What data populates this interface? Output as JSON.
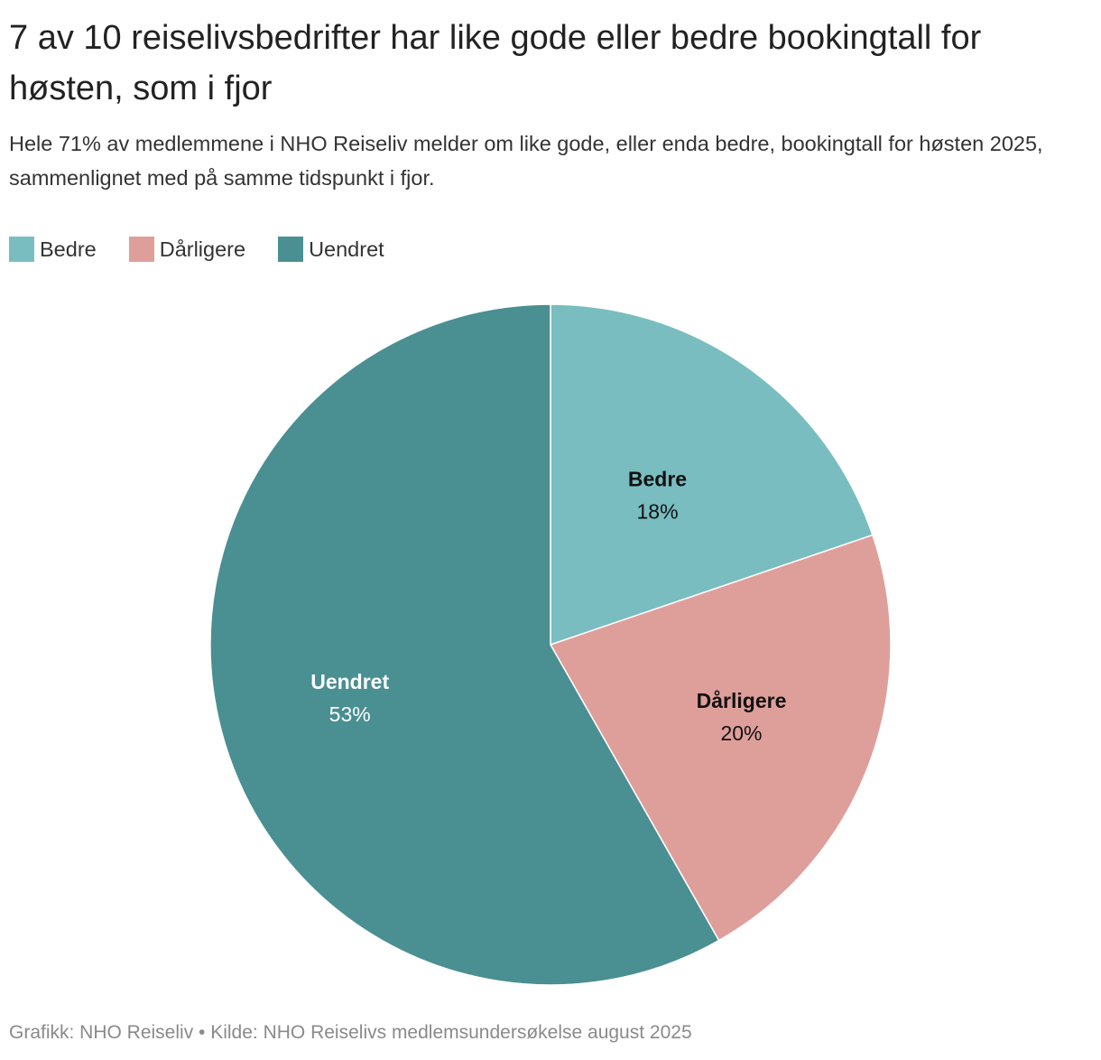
{
  "title": "7 av 10 reiselivsbedrifter har like gode eller bedre bookingtall for høsten, som i fjor",
  "subtitle": "Hele 71% av medlemmene i NHO Reiseliv melder om like gode, eller enda bedre, bookingtall for høsten 2025, sammenlignet med på samme tidspunkt i fjor.",
  "source": "Grafikk: NHO Reiseliv • Kilde: NHO Reiselivs medlemsundersøkelse august 2025",
  "legend": [
    {
      "label": "Bedre",
      "color": "#79bdc0"
    },
    {
      "label": "Dårligere",
      "color": "#de9f9b"
    },
    {
      "label": "Uendret",
      "color": "#4a8f92"
    }
  ],
  "chart_data": {
    "type": "pie",
    "title": "7 av 10 reiselivsbedrifter har like gode eller bedre bookingtall for høsten, som i fjor",
    "slices": [
      {
        "label": "Bedre",
        "value": 18,
        "display": "18%",
        "color": "#79bdc0",
        "label_color": "#111111"
      },
      {
        "label": "Dårligere",
        "value": 20,
        "display": "20%",
        "color": "#de9f9b",
        "label_color": "#111111"
      },
      {
        "label": "Uendret",
        "value": 53,
        "display": "53%",
        "color": "#4a8f92",
        "label_color": "#ffffff"
      }
    ],
    "start": "top",
    "direction": "clockwise",
    "legend_position": "top-left"
  }
}
